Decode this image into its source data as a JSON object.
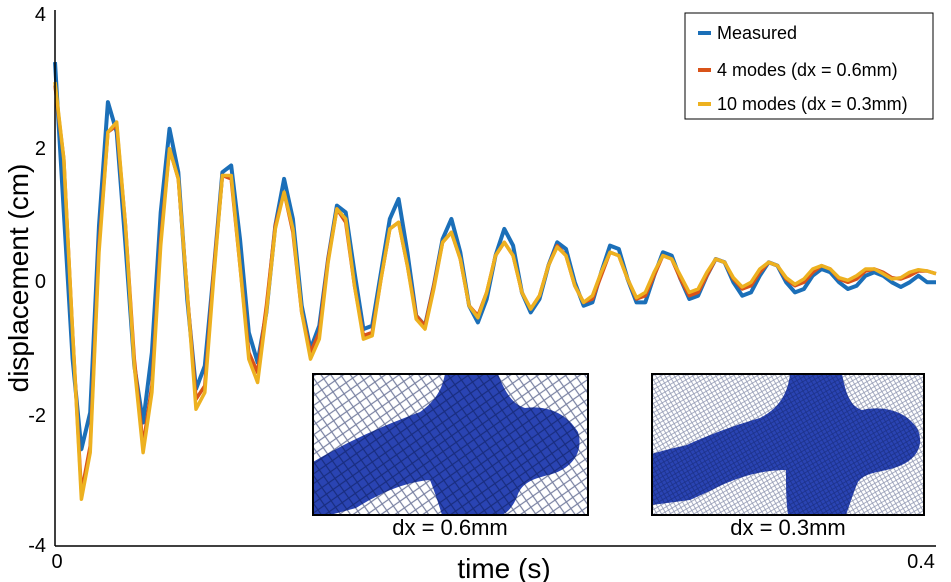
{
  "chart_data": {
    "type": "line",
    "title": "",
    "xlabel": "time (s)",
    "ylabel": "displacement (cm)",
    "xlim": [
      0,
      0.4
    ],
    "ylim": [
      -4,
      4
    ],
    "x_ticks": [
      "0",
      "0.4"
    ],
    "y_ticks": [
      "4",
      "2",
      "0",
      "-2",
      "-4"
    ],
    "grid": false,
    "legend_position": "top-right",
    "series": [
      {
        "name": "Measured",
        "color": "#1b6fb8",
        "points": [
          [
            0,
            3.25
          ],
          [
            0.004,
            1.0
          ],
          [
            0.008,
            -1.2
          ],
          [
            0.012,
            -2.55
          ],
          [
            0.016,
            -2.0
          ],
          [
            0.02,
            0.8
          ],
          [
            0.024,
            2.65
          ],
          [
            0.028,
            2.2
          ],
          [
            0.032,
            0.5
          ],
          [
            0.036,
            -1.3
          ],
          [
            0.04,
            -2.15
          ],
          [
            0.044,
            -1.1
          ],
          [
            0.048,
            1.0
          ],
          [
            0.052,
            2.25
          ],
          [
            0.056,
            1.6
          ],
          [
            0.06,
            -0.3
          ],
          [
            0.064,
            -1.65
          ],
          [
            0.068,
            -1.3
          ],
          [
            0.072,
            0.1
          ],
          [
            0.076,
            1.6
          ],
          [
            0.08,
            1.7
          ],
          [
            0.084,
            0.6
          ],
          [
            0.088,
            -0.8
          ],
          [
            0.092,
            -1.25
          ],
          [
            0.096,
            -0.5
          ],
          [
            0.1,
            0.8
          ],
          [
            0.104,
            1.5
          ],
          [
            0.108,
            0.9
          ],
          [
            0.112,
            -0.4
          ],
          [
            0.116,
            -1.05
          ],
          [
            0.12,
            -0.7
          ],
          [
            0.124,
            0.3
          ],
          [
            0.128,
            1.1
          ],
          [
            0.132,
            1.0
          ],
          [
            0.136,
            0.1
          ],
          [
            0.14,
            -0.75
          ],
          [
            0.144,
            -0.7
          ],
          [
            0.148,
            0.1
          ],
          [
            0.152,
            0.9
          ],
          [
            0.156,
            1.2
          ],
          [
            0.16,
            0.4
          ],
          [
            0.164,
            -0.55
          ],
          [
            0.168,
            -0.7
          ],
          [
            0.172,
            -0.1
          ],
          [
            0.176,
            0.6
          ],
          [
            0.18,
            0.9
          ],
          [
            0.184,
            0.4
          ],
          [
            0.188,
            -0.4
          ],
          [
            0.192,
            -0.65
          ],
          [
            0.196,
            -0.3
          ],
          [
            0.2,
            0.35
          ],
          [
            0.204,
            0.75
          ],
          [
            0.208,
            0.5
          ],
          [
            0.212,
            -0.2
          ],
          [
            0.216,
            -0.5
          ],
          [
            0.22,
            -0.3
          ],
          [
            0.224,
            0.2
          ],
          [
            0.228,
            0.55
          ],
          [
            0.232,
            0.45
          ],
          [
            0.236,
            -0.05
          ],
          [
            0.24,
            -0.4
          ],
          [
            0.244,
            -0.35
          ],
          [
            0.248,
            0.1
          ],
          [
            0.252,
            0.5
          ],
          [
            0.256,
            0.45
          ],
          [
            0.26,
            0.0
          ],
          [
            0.264,
            -0.35
          ],
          [
            0.268,
            -0.35
          ],
          [
            0.272,
            0.05
          ],
          [
            0.276,
            0.4
          ],
          [
            0.28,
            0.35
          ],
          [
            0.284,
            0.0
          ],
          [
            0.288,
            -0.3
          ],
          [
            0.292,
            -0.25
          ],
          [
            0.296,
            0.05
          ],
          [
            0.3,
            0.3
          ],
          [
            0.304,
            0.25
          ],
          [
            0.308,
            -0.05
          ],
          [
            0.312,
            -0.25
          ],
          [
            0.316,
            -0.2
          ],
          [
            0.32,
            0.05
          ],
          [
            0.324,
            0.25
          ],
          [
            0.328,
            0.2
          ],
          [
            0.332,
            -0.05
          ],
          [
            0.336,
            -0.2
          ],
          [
            0.34,
            -0.15
          ],
          [
            0.344,
            0.05
          ],
          [
            0.348,
            0.15
          ],
          [
            0.352,
            0.1
          ],
          [
            0.356,
            -0.05
          ],
          [
            0.36,
            -0.15
          ],
          [
            0.364,
            -0.1
          ],
          [
            0.368,
            0.05
          ],
          [
            0.372,
            0.1
          ],
          [
            0.376,
            0.05
          ],
          [
            0.38,
            -0.05
          ],
          [
            0.384,
            -0.12
          ],
          [
            0.388,
            -0.05
          ],
          [
            0.392,
            0.05
          ],
          [
            0.396,
            -0.05
          ],
          [
            0.4,
            -0.05
          ]
        ]
      },
      {
        "name": "4 modes (dx = 0.6mm)",
        "color": "#d95319",
        "points": [
          [
            0,
            2.9
          ],
          [
            0.004,
            1.8
          ],
          [
            0.008,
            -0.8
          ],
          [
            0.012,
            -3.2
          ],
          [
            0.016,
            -2.5
          ],
          [
            0.02,
            0.5
          ],
          [
            0.024,
            2.2
          ],
          [
            0.028,
            2.3
          ],
          [
            0.032,
            0.8
          ],
          [
            0.036,
            -1.2
          ],
          [
            0.04,
            -2.5
          ],
          [
            0.044,
            -1.6
          ],
          [
            0.048,
            0.6
          ],
          [
            0.052,
            1.95
          ],
          [
            0.056,
            1.5
          ],
          [
            0.06,
            -0.2
          ],
          [
            0.064,
            -1.8
          ],
          [
            0.068,
            -1.6
          ],
          [
            0.072,
            0.1
          ],
          [
            0.076,
            1.55
          ],
          [
            0.08,
            1.5
          ],
          [
            0.084,
            0.2
          ],
          [
            0.088,
            -1.1
          ],
          [
            0.092,
            -1.4
          ],
          [
            0.096,
            -0.4
          ],
          [
            0.1,
            0.8
          ],
          [
            0.104,
            1.3
          ],
          [
            0.108,
            0.7
          ],
          [
            0.112,
            -0.5
          ],
          [
            0.116,
            -1.1
          ],
          [
            0.12,
            -0.8
          ],
          [
            0.124,
            0.3
          ],
          [
            0.128,
            1.05
          ],
          [
            0.132,
            0.85
          ],
          [
            0.136,
            -0.1
          ],
          [
            0.14,
            -0.85
          ],
          [
            0.144,
            -0.8
          ],
          [
            0.148,
            0.0
          ],
          [
            0.152,
            0.75
          ],
          [
            0.156,
            0.85
          ],
          [
            0.16,
            0.2
          ],
          [
            0.164,
            -0.55
          ],
          [
            0.168,
            -0.7
          ],
          [
            0.172,
            -0.1
          ],
          [
            0.176,
            0.55
          ],
          [
            0.18,
            0.7
          ],
          [
            0.184,
            0.3
          ],
          [
            0.188,
            -0.4
          ],
          [
            0.192,
            -0.55
          ],
          [
            0.196,
            -0.2
          ],
          [
            0.2,
            0.35
          ],
          [
            0.204,
            0.55
          ],
          [
            0.208,
            0.35
          ],
          [
            0.212,
            -0.2
          ],
          [
            0.216,
            -0.45
          ],
          [
            0.22,
            -0.25
          ],
          [
            0.224,
            0.2
          ],
          [
            0.228,
            0.5
          ],
          [
            0.232,
            0.35
          ],
          [
            0.236,
            -0.1
          ],
          [
            0.24,
            -0.35
          ],
          [
            0.244,
            -0.3
          ],
          [
            0.248,
            0.05
          ],
          [
            0.252,
            0.4
          ],
          [
            0.256,
            0.35
          ],
          [
            0.26,
            0.0
          ],
          [
            0.264,
            -0.3
          ],
          [
            0.268,
            -0.25
          ],
          [
            0.272,
            0.05
          ],
          [
            0.276,
            0.35
          ],
          [
            0.28,
            0.3
          ],
          [
            0.284,
            0.0
          ],
          [
            0.288,
            -0.25
          ],
          [
            0.292,
            -0.2
          ],
          [
            0.296,
            0.05
          ],
          [
            0.3,
            0.3
          ],
          [
            0.304,
            0.25
          ],
          [
            0.308,
            0.0
          ],
          [
            0.312,
            -0.15
          ],
          [
            0.316,
            -0.1
          ],
          [
            0.32,
            0.1
          ],
          [
            0.324,
            0.25
          ],
          [
            0.328,
            0.2
          ],
          [
            0.332,
            0.0
          ],
          [
            0.336,
            -0.1
          ],
          [
            0.34,
            -0.05
          ],
          [
            0.344,
            0.1
          ],
          [
            0.348,
            0.2
          ],
          [
            0.352,
            0.15
          ],
          [
            0.356,
            0.0
          ],
          [
            0.36,
            -0.05
          ],
          [
            0.364,
            0.0
          ],
          [
            0.368,
            0.12
          ],
          [
            0.372,
            0.15
          ],
          [
            0.376,
            0.1
          ],
          [
            0.38,
            0.02
          ],
          [
            0.384,
            0.0
          ],
          [
            0.388,
            0.05
          ],
          [
            0.392,
            0.12
          ],
          [
            0.396,
            0.12
          ],
          [
            0.4,
            0.08
          ]
        ]
      },
      {
        "name": "10 modes (dx = 0.3mm)",
        "color": "#edb120",
        "points": [
          [
            0,
            2.95
          ],
          [
            0.004,
            1.8
          ],
          [
            0.008,
            -0.8
          ],
          [
            0.012,
            -3.3
          ],
          [
            0.016,
            -2.6
          ],
          [
            0.02,
            0.4
          ],
          [
            0.024,
            2.2
          ],
          [
            0.028,
            2.35
          ],
          [
            0.032,
            0.8
          ],
          [
            0.036,
            -1.3
          ],
          [
            0.04,
            -2.6
          ],
          [
            0.044,
            -1.7
          ],
          [
            0.048,
            0.5
          ],
          [
            0.052,
            1.95
          ],
          [
            0.056,
            1.5
          ],
          [
            0.06,
            -0.2
          ],
          [
            0.064,
            -1.95
          ],
          [
            0.068,
            -1.7
          ],
          [
            0.072,
            0.0
          ],
          [
            0.076,
            1.55
          ],
          [
            0.08,
            1.55
          ],
          [
            0.084,
            0.2
          ],
          [
            0.088,
            -1.2
          ],
          [
            0.092,
            -1.55
          ],
          [
            0.096,
            -0.5
          ],
          [
            0.1,
            0.75
          ],
          [
            0.104,
            1.3
          ],
          [
            0.108,
            0.75
          ],
          [
            0.112,
            -0.5
          ],
          [
            0.116,
            -1.2
          ],
          [
            0.12,
            -0.9
          ],
          [
            0.124,
            0.25
          ],
          [
            0.128,
            1.05
          ],
          [
            0.132,
            0.9
          ],
          [
            0.136,
            -0.1
          ],
          [
            0.14,
            -0.9
          ],
          [
            0.144,
            -0.85
          ],
          [
            0.148,
            0.0
          ],
          [
            0.152,
            0.75
          ],
          [
            0.156,
            0.85
          ],
          [
            0.16,
            0.2
          ],
          [
            0.164,
            -0.6
          ],
          [
            0.168,
            -0.75
          ],
          [
            0.172,
            -0.15
          ],
          [
            0.176,
            0.55
          ],
          [
            0.18,
            0.7
          ],
          [
            0.184,
            0.3
          ],
          [
            0.188,
            -0.4
          ],
          [
            0.192,
            -0.58
          ],
          [
            0.196,
            -0.2
          ],
          [
            0.2,
            0.35
          ],
          [
            0.204,
            0.55
          ],
          [
            0.208,
            0.35
          ],
          [
            0.212,
            -0.2
          ],
          [
            0.216,
            -0.45
          ],
          [
            0.22,
            -0.25
          ],
          [
            0.224,
            0.2
          ],
          [
            0.228,
            0.48
          ],
          [
            0.232,
            0.35
          ],
          [
            0.236,
            -0.1
          ],
          [
            0.24,
            -0.35
          ],
          [
            0.244,
            -0.25
          ],
          [
            0.248,
            0.1
          ],
          [
            0.252,
            0.4
          ],
          [
            0.256,
            0.35
          ],
          [
            0.26,
            0.0
          ],
          [
            0.264,
            -0.28
          ],
          [
            0.268,
            -0.2
          ],
          [
            0.272,
            0.1
          ],
          [
            0.276,
            0.35
          ],
          [
            0.28,
            0.3
          ],
          [
            0.284,
            0.05
          ],
          [
            0.288,
            -0.2
          ],
          [
            0.292,
            -0.15
          ],
          [
            0.296,
            0.1
          ],
          [
            0.3,
            0.3
          ],
          [
            0.304,
            0.25
          ],
          [
            0.308,
            0.02
          ],
          [
            0.312,
            -0.12
          ],
          [
            0.316,
            -0.05
          ],
          [
            0.32,
            0.15
          ],
          [
            0.324,
            0.25
          ],
          [
            0.328,
            0.2
          ],
          [
            0.332,
            0.02
          ],
          [
            0.336,
            -0.08
          ],
          [
            0.34,
            0.0
          ],
          [
            0.344,
            0.15
          ],
          [
            0.348,
            0.2
          ],
          [
            0.352,
            0.15
          ],
          [
            0.356,
            0.02
          ],
          [
            0.36,
            -0.02
          ],
          [
            0.364,
            0.05
          ],
          [
            0.368,
            0.15
          ],
          [
            0.372,
            0.15
          ],
          [
            0.376,
            0.08
          ],
          [
            0.38,
            0.0
          ],
          [
            0.384,
            0.02
          ],
          [
            0.388,
            0.1
          ],
          [
            0.392,
            0.14
          ],
          [
            0.396,
            0.12
          ],
          [
            0.4,
            0.08
          ]
        ]
      }
    ],
    "insets": [
      {
        "caption": "dx = 0.6mm",
        "mesh_color": "#2a44b3"
      },
      {
        "caption": "dx = 0.3mm",
        "mesh_color": "#2a44b3"
      }
    ]
  }
}
